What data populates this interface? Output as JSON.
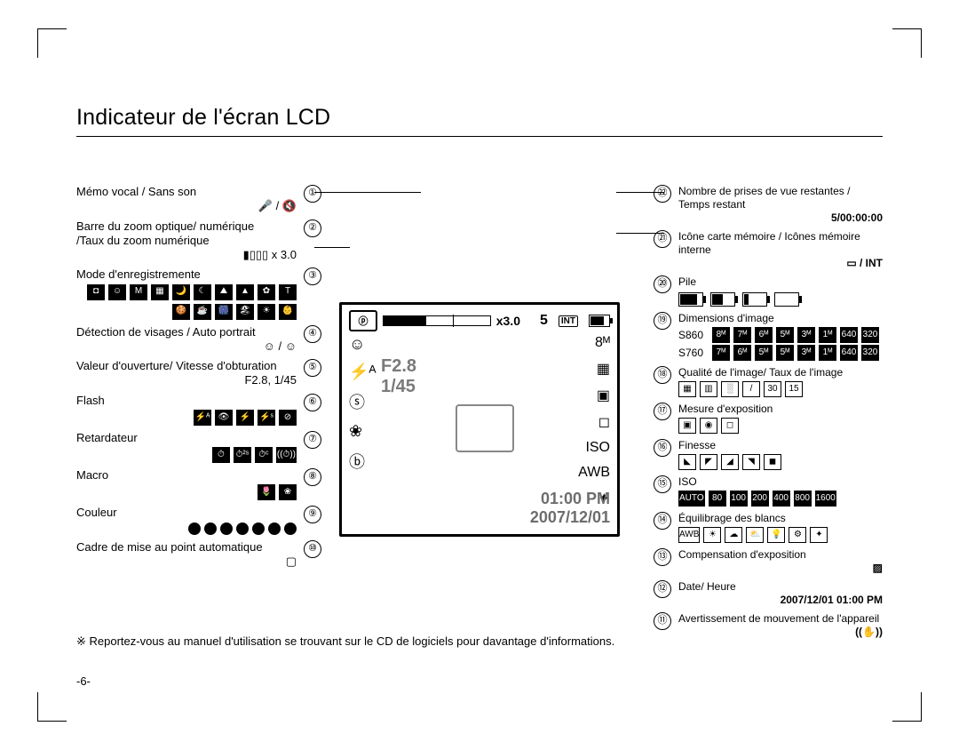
{
  "page": {
    "title": "Indicateur de l'écran LCD",
    "footnote": "※ Reportez-vous au manuel d'utilisation se trouvant sur le CD de logiciels pour davantage d'informations.",
    "number": "-6-"
  },
  "lcd": {
    "mode_glyph": "ⓟ",
    "zoom_text": "x3.0",
    "shots": "5",
    "aperture": "F2.8",
    "shutter": "1/45",
    "time": "01:00 PM",
    "date": "2007/12/01",
    "right_size_glyph": "8ᴹ",
    "left_icons": [
      "☺",
      "⚡ᴬ",
      "ⓢ",
      "❀",
      "ⓑ"
    ],
    "right_icons": [
      "8ᴹ",
      "▦",
      "▣",
      "◻",
      "ISO",
      "AWB",
      "✦"
    ]
  },
  "left": [
    {
      "n": "①",
      "label": "Mémo vocal / Sans son",
      "value": "🎤 / 🔇"
    },
    {
      "n": "②",
      "label": "Barre du zoom optique/ numérique\n/Taux du zoom numérique",
      "value": "▮▯▯▯  x 3.0"
    },
    {
      "n": "③",
      "label": "Mode d'enregistremente",
      "icons": [
        "◘",
        "☺",
        "M",
        "▦",
        "🌙",
        "☾",
        "⛰",
        "▲",
        "✿",
        "T",
        "🍪",
        "☕",
        "🎆",
        "🏖",
        "☀",
        "👶"
      ]
    },
    {
      "n": "④",
      "label": "Détection de visages / Auto portrait",
      "value": "☺ / ☺"
    },
    {
      "n": "⑤",
      "label": "Valeur d'ouverture/ Vitesse d'obturation",
      "value": "F2.8, 1/45"
    },
    {
      "n": "⑥",
      "label": "Flash",
      "icons": [
        "⚡ᴬ",
        "👁",
        "⚡",
        "⚡ˢ",
        "⊘"
      ]
    },
    {
      "n": "⑦",
      "label": "Retardateur",
      "icons": [
        "⏱",
        "⏱²ˢ",
        "⏱ᶜ",
        "((⏱))"
      ]
    },
    {
      "n": "⑧",
      "label": "Macro",
      "icons": [
        "🌷",
        "❀"
      ]
    },
    {
      "n": "⑨",
      "label": "Couleur",
      "icons": [
        "BW",
        "S",
        "R",
        "G",
        "B",
        "N",
        "C"
      ]
    },
    {
      "n": "⑩",
      "label": "Cadre de mise au point automatique",
      "value": "▢"
    }
  ],
  "right": [
    {
      "n": "㉒",
      "label": "Nombre de prises de vue restantes /\nTemps restant",
      "value": "5/00:00:00"
    },
    {
      "n": "㉑",
      "label": "Icône carte mémoire / Icônes mémoire interne",
      "value": "▭ / INT"
    },
    {
      "n": "⑳",
      "label": "Pile",
      "batteries": [
        "w3",
        "w2",
        "w1",
        "w0"
      ]
    },
    {
      "n": "⑲",
      "label": "Dimensions d'image",
      "rows": [
        {
          "model": "S860",
          "chips": [
            "8ᴹ",
            "7ᴹ",
            "6ᴹ",
            "5ᴹ",
            "3ᴹ",
            "1ᴹ",
            "640",
            "320"
          ]
        },
        {
          "model": "S760",
          "chips": [
            "7ᴹ",
            "6ᴹ",
            "5ᴹ",
            "5ᴹ",
            "3ᴹ",
            "1ᴹ",
            "640",
            "320"
          ]
        }
      ]
    },
    {
      "n": "⑱",
      "label": "Qualité de l'image/ Taux de l'image",
      "icons": [
        "▦",
        "▥",
        "░",
        "/",
        "30",
        "15"
      ]
    },
    {
      "n": "⑰",
      "label": "Mesure d'exposition",
      "icons": [
        "▣",
        "◉",
        "◻"
      ]
    },
    {
      "n": "⑯",
      "label": "Finesse",
      "icons": [
        "◣",
        "◤",
        "◢",
        "◥",
        "◼"
      ]
    },
    {
      "n": "⑮",
      "label": "ISO",
      "chips": [
        "AUTO",
        "80",
        "100",
        "200",
        "400",
        "800",
        "1600"
      ]
    },
    {
      "n": "⑭",
      "label": "Équilibrage des blancs",
      "icons": [
        "AWB",
        "☀",
        "☁",
        "⛅",
        "💡",
        "⚙",
        "✦"
      ]
    },
    {
      "n": "⑬",
      "label": "Compensation d'exposition",
      "value": "▨"
    },
    {
      "n": "⑫",
      "label": "Date/ Heure",
      "value": "2007/12/01  01:00 PM"
    },
    {
      "n": "⑪",
      "label": "Avertissement de mouvement de l'appareil",
      "value": "((✋))"
    }
  ]
}
